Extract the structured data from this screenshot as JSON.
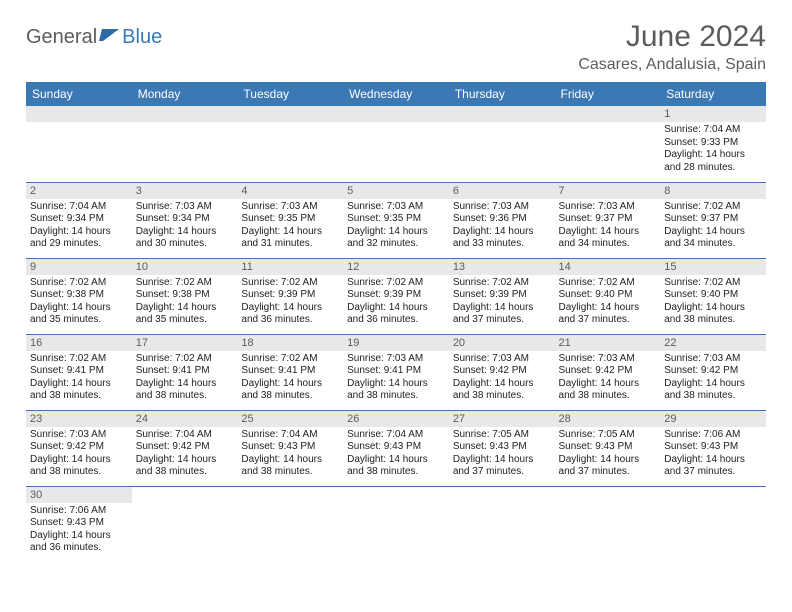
{
  "brand": {
    "part1": "General",
    "part2": "Blue",
    "icon_color": "#2f6aa8"
  },
  "title": "June 2024",
  "location": "Casares, Andalusia, Spain",
  "colors": {
    "header_bg": "#3b78b4",
    "header_text": "#ffffff",
    "daynum_bg": "#e8e8e8",
    "text_muted": "#5c5c5c",
    "rule": "#3b78b4"
  },
  "weekdays": [
    "Sunday",
    "Monday",
    "Tuesday",
    "Wednesday",
    "Thursday",
    "Friday",
    "Saturday"
  ],
  "first_weekday_index": 6,
  "days": [
    {
      "n": 1,
      "sunrise": "7:04 AM",
      "sunset": "9:33 PM",
      "daylight": "14 hours and 28 minutes."
    },
    {
      "n": 2,
      "sunrise": "7:04 AM",
      "sunset": "9:34 PM",
      "daylight": "14 hours and 29 minutes."
    },
    {
      "n": 3,
      "sunrise": "7:03 AM",
      "sunset": "9:34 PM",
      "daylight": "14 hours and 30 minutes."
    },
    {
      "n": 4,
      "sunrise": "7:03 AM",
      "sunset": "9:35 PM",
      "daylight": "14 hours and 31 minutes."
    },
    {
      "n": 5,
      "sunrise": "7:03 AM",
      "sunset": "9:35 PM",
      "daylight": "14 hours and 32 minutes."
    },
    {
      "n": 6,
      "sunrise": "7:03 AM",
      "sunset": "9:36 PM",
      "daylight": "14 hours and 33 minutes."
    },
    {
      "n": 7,
      "sunrise": "7:03 AM",
      "sunset": "9:37 PM",
      "daylight": "14 hours and 34 minutes."
    },
    {
      "n": 8,
      "sunrise": "7:02 AM",
      "sunset": "9:37 PM",
      "daylight": "14 hours and 34 minutes."
    },
    {
      "n": 9,
      "sunrise": "7:02 AM",
      "sunset": "9:38 PM",
      "daylight": "14 hours and 35 minutes."
    },
    {
      "n": 10,
      "sunrise": "7:02 AM",
      "sunset": "9:38 PM",
      "daylight": "14 hours and 35 minutes."
    },
    {
      "n": 11,
      "sunrise": "7:02 AM",
      "sunset": "9:39 PM",
      "daylight": "14 hours and 36 minutes."
    },
    {
      "n": 12,
      "sunrise": "7:02 AM",
      "sunset": "9:39 PM",
      "daylight": "14 hours and 36 minutes."
    },
    {
      "n": 13,
      "sunrise": "7:02 AM",
      "sunset": "9:39 PM",
      "daylight": "14 hours and 37 minutes."
    },
    {
      "n": 14,
      "sunrise": "7:02 AM",
      "sunset": "9:40 PM",
      "daylight": "14 hours and 37 minutes."
    },
    {
      "n": 15,
      "sunrise": "7:02 AM",
      "sunset": "9:40 PM",
      "daylight": "14 hours and 38 minutes."
    },
    {
      "n": 16,
      "sunrise": "7:02 AM",
      "sunset": "9:41 PM",
      "daylight": "14 hours and 38 minutes."
    },
    {
      "n": 17,
      "sunrise": "7:02 AM",
      "sunset": "9:41 PM",
      "daylight": "14 hours and 38 minutes."
    },
    {
      "n": 18,
      "sunrise": "7:02 AM",
      "sunset": "9:41 PM",
      "daylight": "14 hours and 38 minutes."
    },
    {
      "n": 19,
      "sunrise": "7:03 AM",
      "sunset": "9:41 PM",
      "daylight": "14 hours and 38 minutes."
    },
    {
      "n": 20,
      "sunrise": "7:03 AM",
      "sunset": "9:42 PM",
      "daylight": "14 hours and 38 minutes."
    },
    {
      "n": 21,
      "sunrise": "7:03 AM",
      "sunset": "9:42 PM",
      "daylight": "14 hours and 38 minutes."
    },
    {
      "n": 22,
      "sunrise": "7:03 AM",
      "sunset": "9:42 PM",
      "daylight": "14 hours and 38 minutes."
    },
    {
      "n": 23,
      "sunrise": "7:03 AM",
      "sunset": "9:42 PM",
      "daylight": "14 hours and 38 minutes."
    },
    {
      "n": 24,
      "sunrise": "7:04 AM",
      "sunset": "9:42 PM",
      "daylight": "14 hours and 38 minutes."
    },
    {
      "n": 25,
      "sunrise": "7:04 AM",
      "sunset": "9:43 PM",
      "daylight": "14 hours and 38 minutes."
    },
    {
      "n": 26,
      "sunrise": "7:04 AM",
      "sunset": "9:43 PM",
      "daylight": "14 hours and 38 minutes."
    },
    {
      "n": 27,
      "sunrise": "7:05 AM",
      "sunset": "9:43 PM",
      "daylight": "14 hours and 37 minutes."
    },
    {
      "n": 28,
      "sunrise": "7:05 AM",
      "sunset": "9:43 PM",
      "daylight": "14 hours and 37 minutes."
    },
    {
      "n": 29,
      "sunrise": "7:06 AM",
      "sunset": "9:43 PM",
      "daylight": "14 hours and 37 minutes."
    },
    {
      "n": 30,
      "sunrise": "7:06 AM",
      "sunset": "9:43 PM",
      "daylight": "14 hours and 36 minutes."
    }
  ],
  "labels": {
    "sunrise": "Sunrise:",
    "sunset": "Sunset:",
    "daylight": "Daylight:"
  }
}
